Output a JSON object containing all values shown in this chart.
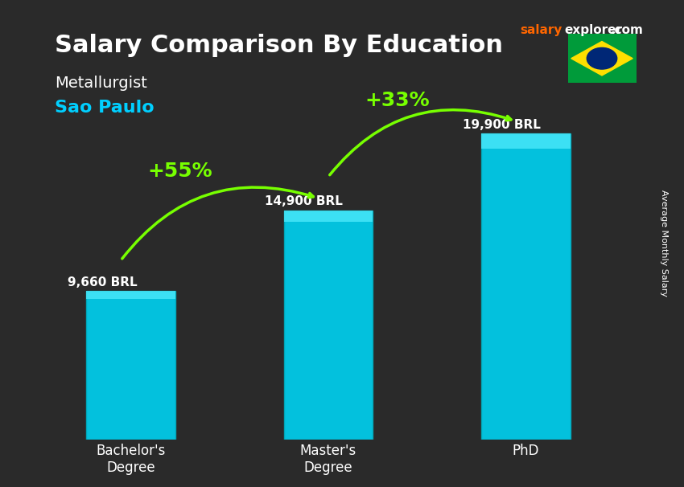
{
  "title": "Salary Comparison By Education",
  "subtitle1": "Metallurgist",
  "subtitle2": "Sao Paulo",
  "categories": [
    "Bachelor's\nDegree",
    "Master's\nDegree",
    "PhD"
  ],
  "values": [
    9660,
    14900,
    19900
  ],
  "value_labels": [
    "9,660 BRL",
    "14,900 BRL",
    "19,900 BRL"
  ],
  "bar_color": "#00BFFF",
  "bar_color_top": "#00D4FF",
  "bar_edge_color": "#00BFFF",
  "bg_color": "#1a1a2e",
  "text_color_white": "#ffffff",
  "text_color_cyan": "#00CFFF",
  "arrow_color": "#77FF00",
  "pct_labels": [
    "+55%",
    "+33%"
  ],
  "ylim": [
    0,
    24000
  ],
  "ylabel": "Average Monthly Salary",
  "site_text": "salaryexplorer.com",
  "site_salary": "salary",
  "site_explorer": "explorer",
  "title_fontsize": 22,
  "subtitle1_fontsize": 14,
  "subtitle2_fontsize": 16,
  "bar_width": 0.45
}
